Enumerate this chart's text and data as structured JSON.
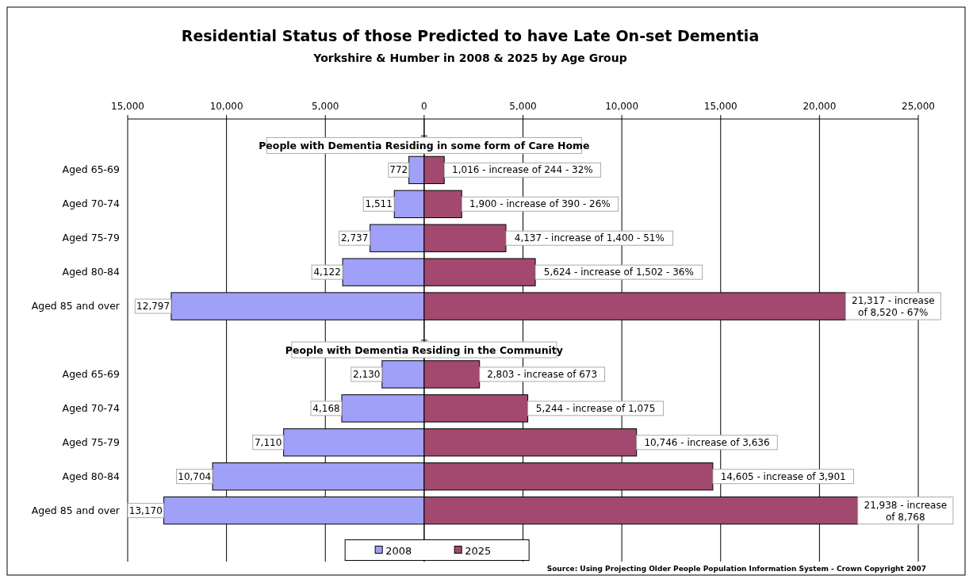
{
  "chart_data": {
    "type": "bar",
    "orientation": "horizontal",
    "title": "Residential Status of those Predicted to have Late On-set Dementia",
    "subtitle": "Yorkshire & Humber in 2008 & 2025 by Age Group",
    "categories": [
      null,
      "Aged 65-69",
      "Aged 70-74",
      "Aged 75-79",
      "Aged 80-84",
      "Aged 85 and over",
      null,
      "Aged 65-69",
      "Aged 70-74",
      "Aged 75-79",
      "Aged 80-84",
      "Aged 85 and over",
      null
    ],
    "series": [
      {
        "name": "2008",
        "color": "#a0a0f8",
        "base": [
          null,
          -772,
          -1511,
          -2737,
          -4122,
          -12797,
          null,
          -2130,
          -4168,
          -7110,
          -10704,
          -13170,
          null
        ],
        "values": [
          null,
          772,
          1511,
          2737,
          4122,
          12797,
          null,
          2130,
          4168,
          7110,
          10704,
          13170,
          null
        ],
        "value_labels": [
          null,
          "772",
          "1,511",
          "2,737",
          "4,122",
          "12,797",
          null,
          "2,130",
          "4,168",
          "7,110",
          "10,704",
          "13,170",
          null
        ]
      },
      {
        "name": "2025",
        "color": "#a3486e",
        "values": [
          null,
          1016,
          1900,
          4137,
          5624,
          21317,
          null,
          2803,
          5244,
          10746,
          14605,
          21938,
          null
        ],
        "value_labels": [
          null,
          "1,016 - increase of 244 - 32%",
          "1,900 - increase of 390 - 26%",
          "4,137 - increase of 1,400 - 51%",
          "5,624 - increase of 1,502 - 36%",
          "21,317 - increase of 8,520 - 67%",
          null,
          "2,803 - increase of 673",
          "5,244 - increase of 1,075",
          "10,746 - increase of 3,636",
          "14,605 - increase of 3,901",
          "21,938 - increase of 8,768",
          null
        ]
      }
    ],
    "xlim": [
      -15000,
      25000
    ],
    "xticks": [
      {
        "value": -15000,
        "label": "15,000"
      },
      {
        "value": -10000,
        "label": "10,000"
      },
      {
        "value": -5000,
        "label": "5,000"
      },
      0,
      {
        "value": 5000,
        "label": "5,000"
      },
      {
        "value": 10000,
        "label": "10,000"
      },
      {
        "value": 15000,
        "label": "15,000"
      },
      {
        "value": 20000,
        "label": "20,000"
      },
      {
        "value": 25000,
        "label": "25,000"
      }
    ],
    "grid": "x",
    "legend": "bottom",
    "annotations": [
      "People with Dementia Residing in some form of Care Home",
      "People with Dementia Residing in the Community",
      "Source: Using Projecting Older People Population Information System - Crown Copyright 2007"
    ]
  }
}
